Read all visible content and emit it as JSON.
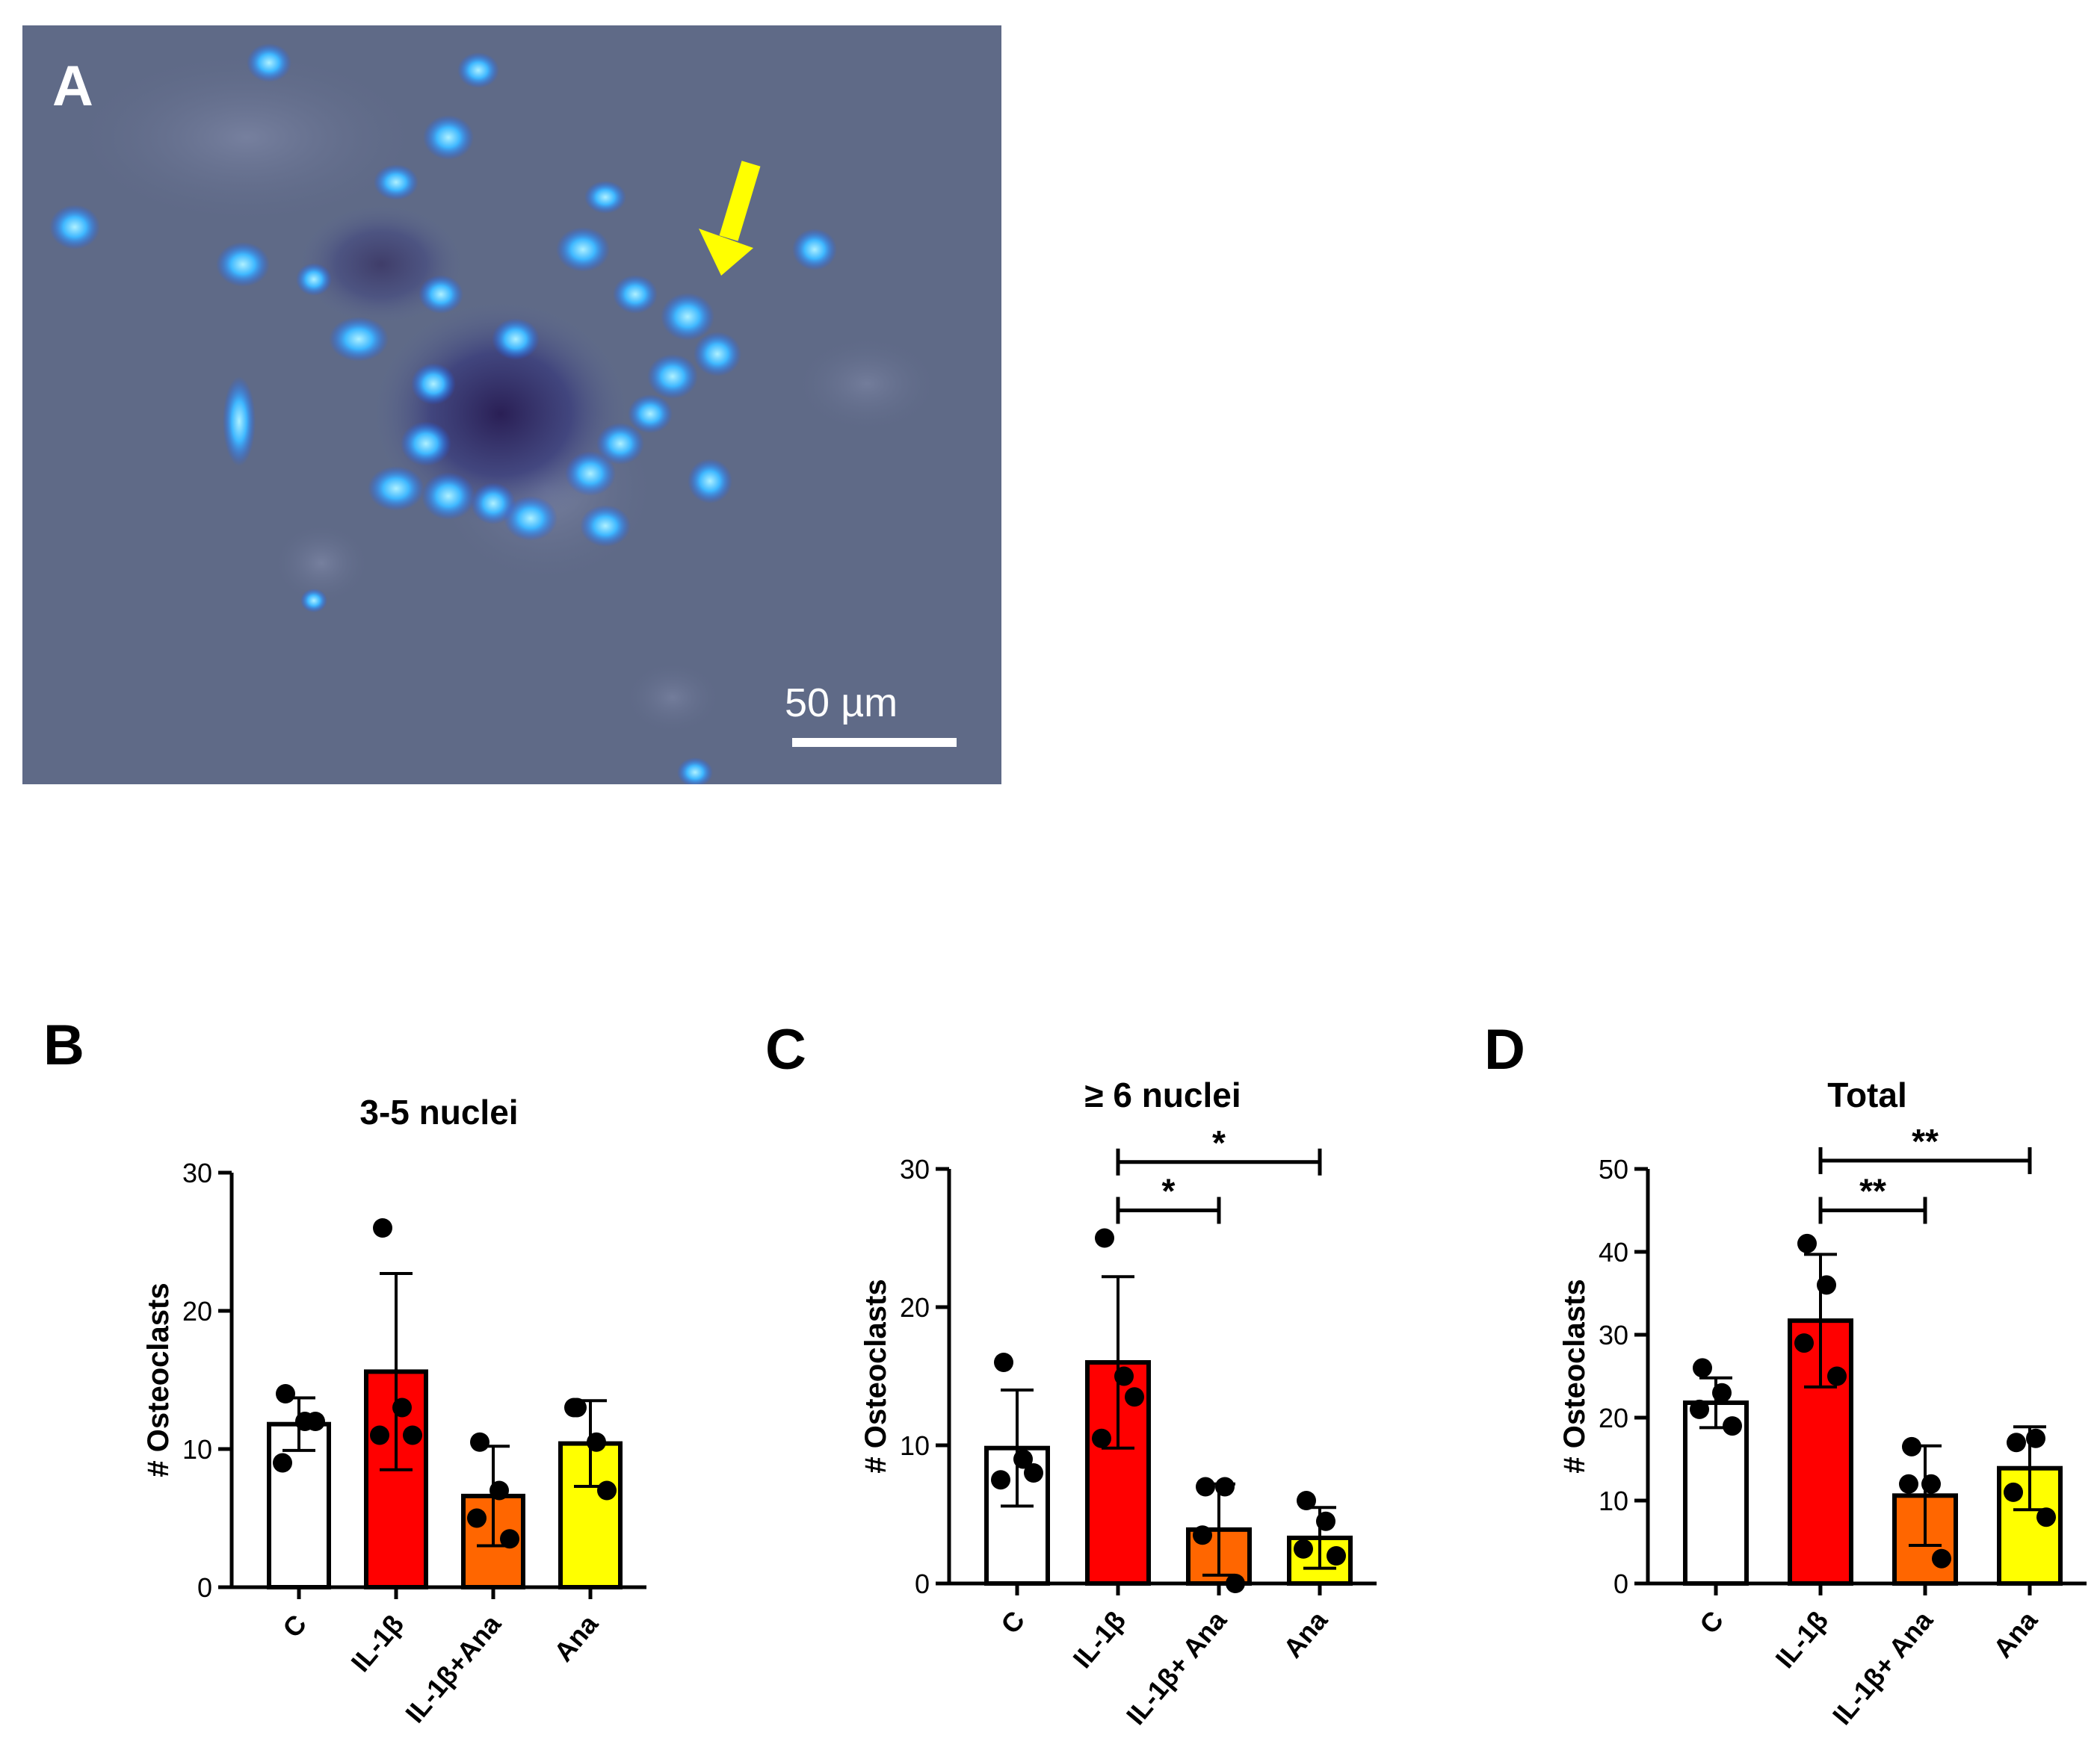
{
  "panels": {
    "a": "A",
    "b": "B",
    "c": "C",
    "d": "D"
  },
  "micrograph": {
    "scale_label": "50 µm",
    "arrow_color": "#ffff00"
  },
  "chart_data": [
    {
      "type": "bar",
      "panel": "B",
      "title": "3-5 nuclei",
      "ylabel": "# Osteoclasts",
      "categories": [
        "C",
        "IL-1β",
        "IL-1β+Ana",
        "Ana"
      ],
      "values": [
        11.8,
        15.6,
        6.6,
        10.4
      ],
      "error": [
        1.9,
        7.1,
        3.6,
        3.1
      ],
      "points": [
        [
          14,
          12,
          9,
          12
        ],
        [
          26,
          13,
          11,
          11
        ],
        [
          10.5,
          7,
          5,
          3.5
        ],
        [
          13,
          10.5,
          13,
          7
        ]
      ],
      "colors": [
        "#ffffff",
        "#ff0000",
        "#ff6600",
        "#ffff00"
      ],
      "ylim": [
        0,
        30
      ],
      "yticks": [
        0,
        10,
        20,
        30
      ],
      "significance": []
    },
    {
      "type": "bar",
      "panel": "C",
      "title": "≥ 6 nuclei",
      "ylabel": "# Osteoclasts",
      "categories": [
        "C",
        "IL-1β",
        "IL-1β+ Ana",
        "Ana"
      ],
      "values": [
        9.8,
        16.0,
        3.9,
        3.3
      ],
      "error": [
        4.2,
        6.2,
        3.3,
        2.2
      ],
      "points": [
        [
          16,
          9,
          7.5,
          8
        ],
        [
          25,
          15,
          10.5,
          13.5
        ],
        [
          7,
          7,
          3.5,
          0
        ],
        [
          6,
          4.5,
          2.5,
          2
        ]
      ],
      "colors": [
        "#ffffff",
        "#ff0000",
        "#ff6600",
        "#ffff00"
      ],
      "ylim": [
        0,
        30
      ],
      "yticks": [
        0,
        10,
        20,
        30
      ],
      "significance": [
        {
          "from": 1,
          "to": 2,
          "y": 27,
          "label": "*"
        },
        {
          "from": 1,
          "to": 3,
          "y": 30.5,
          "label": "*"
        }
      ]
    },
    {
      "type": "bar",
      "panel": "D",
      "title": "Total",
      "ylabel": "# Osteoclasts",
      "categories": [
        "C",
        "IL-1β",
        "IL-1β+ Ana",
        "Ana"
      ],
      "values": [
        21.8,
        31.7,
        10.6,
        13.9
      ],
      "error": [
        3.0,
        8.0,
        6.0,
        5.0
      ],
      "points": [
        [
          26,
          23,
          21,
          19
        ],
        [
          41,
          36,
          29,
          25
        ],
        [
          16.5,
          12,
          12,
          3
        ],
        [
          17,
          17.5,
          11,
          8
        ]
      ],
      "colors": [
        "#ffffff",
        "#ff0000",
        "#ff6600",
        "#ffff00"
      ],
      "ylim": [
        0,
        50
      ],
      "yticks": [
        0,
        10,
        20,
        30,
        40,
        50
      ],
      "significance": [
        {
          "from": 1,
          "to": 2,
          "y": 45,
          "label": "**"
        },
        {
          "from": 1,
          "to": 3,
          "y": 51,
          "label": "**"
        }
      ]
    }
  ]
}
